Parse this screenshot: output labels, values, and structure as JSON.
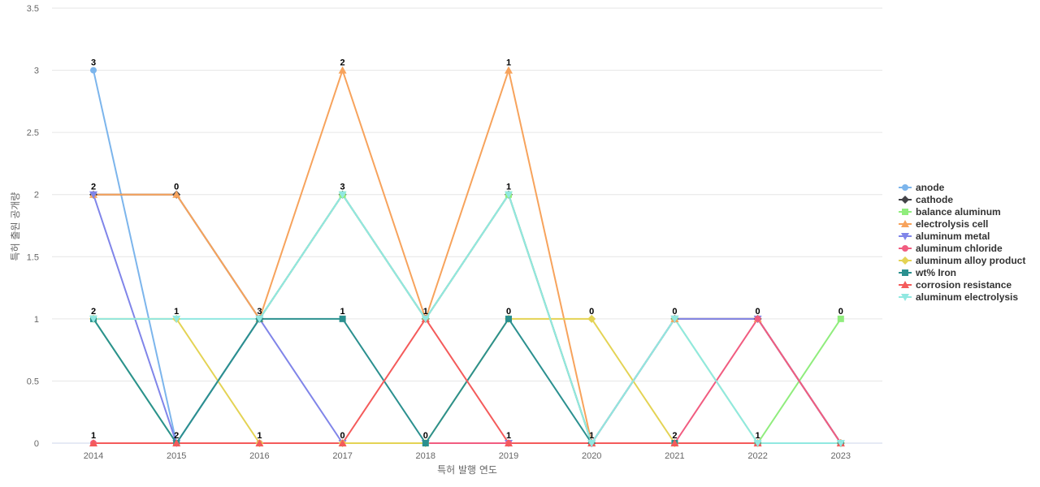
{
  "chart_data": {
    "type": "line",
    "xlabel": "특허 발행 연도",
    "ylabel": "특허 출원 공개량",
    "categories": [
      "2014",
      "2015",
      "2016",
      "2017",
      "2018",
      "2019",
      "2020",
      "2021",
      "2022",
      "2023"
    ],
    "ylim": [
      0,
      3.5
    ],
    "yticks": [
      "0",
      "0.5",
      "1",
      "1.5",
      "2",
      "2.5",
      "3",
      "3.5"
    ],
    "grid": true,
    "legend_position": "right",
    "data_labels": [
      "3",
      "2",
      "2",
      "1",
      "0",
      "1",
      "2",
      "3",
      "1",
      "2",
      "3",
      "1",
      "0",
      "1",
      "0",
      "1",
      "1",
      "0",
      "1",
      "0",
      "1",
      "0",
      "2",
      "0",
      "1",
      "0"
    ],
    "series": [
      {
        "name": "anode",
        "color": "#7cb5ec",
        "marker": "circle",
        "values": [
          3,
          0,
          1,
          2,
          1,
          2,
          0,
          1,
          1,
          0
        ]
      },
      {
        "name": "cathode",
        "color": "#434348",
        "marker": "diamond",
        "values": [
          2,
          2,
          1,
          2,
          1,
          2,
          0,
          1,
          1,
          0
        ]
      },
      {
        "name": "balance aluminum",
        "color": "#90ed7d",
        "marker": "square",
        "values": [
          1,
          0,
          1,
          2,
          1,
          2,
          0,
          1,
          0,
          1
        ]
      },
      {
        "name": "electrolysis cell",
        "color": "#f7a35c",
        "marker": "triangle",
        "values": [
          2,
          2,
          1,
          3,
          1,
          3,
          0,
          1,
          1,
          0
        ]
      },
      {
        "name": "aluminum metal",
        "color": "#8085e9",
        "marker": "triangle-down",
        "values": [
          2,
          0,
          1,
          0,
          0,
          0,
          0,
          1,
          1,
          0
        ]
      },
      {
        "name": "aluminum chloride",
        "color": "#f15c80",
        "marker": "circle",
        "values": [
          0,
          0,
          0,
          0,
          0,
          0,
          0,
          0,
          1,
          0
        ]
      },
      {
        "name": "aluminum alloy product",
        "color": "#e4d354",
        "marker": "diamond",
        "values": [
          1,
          1,
          0,
          0,
          0,
          1,
          1,
          0,
          0,
          0
        ]
      },
      {
        "name": "wt% Iron",
        "color": "#2b908f",
        "marker": "square",
        "values": [
          1,
          0,
          1,
          1,
          0,
          1,
          0,
          0,
          0,
          0
        ]
      },
      {
        "name": "corrosion resistance",
        "color": "#f45b5b",
        "marker": "triangle",
        "values": [
          0,
          0,
          0,
          0,
          1,
          0,
          0,
          0,
          0,
          0
        ]
      },
      {
        "name": "aluminum electrolysis",
        "color": "#91e8e1",
        "marker": "triangle-down",
        "values": [
          1,
          1,
          1,
          2,
          1,
          2,
          0,
          1,
          0,
          0
        ]
      }
    ]
  }
}
